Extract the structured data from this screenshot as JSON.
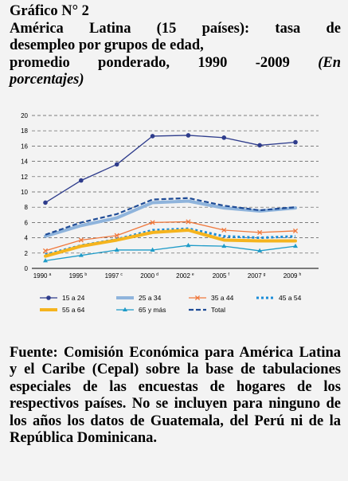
{
  "header": {
    "figure_label": "Gráfico N° 2",
    "title_line1": "América Latina (15 países): tasa de",
    "title_line2": "desempleo por grupos de edad,",
    "title_line3a": "promedio ponderado, 1990 -2009",
    "title_note_a": "(En",
    "title_note_b": "porcentajes)"
  },
  "chart_data": {
    "type": "line",
    "title": "",
    "xlabel": "",
    "ylabel": "",
    "categories": [
      "1990",
      "1995",
      "1997",
      "2000",
      "2002",
      "2005",
      "2007",
      "2009"
    ],
    "category_notes": [
      "a",
      "b",
      "c",
      "d",
      "e",
      "f",
      "g",
      "h"
    ],
    "ylim": [
      0,
      20
    ],
    "yticks": [
      "0",
      "2",
      "4",
      "6",
      "8",
      "10",
      "12",
      "14",
      "16",
      "18",
      "20"
    ],
    "grid": "horizontal dashed",
    "legend": "bottom",
    "series": [
      {
        "name": "15 a 24",
        "color": "#2e3c8c",
        "style": "line-circle",
        "values": [
          8.6,
          11.5,
          13.6,
          17.3,
          17.4,
          17.1,
          16.1,
          16.5
        ]
      },
      {
        "name": "25 a 34",
        "color": "#8fb4dc",
        "style": "thick",
        "values": [
          4.2,
          5.6,
          6.6,
          8.6,
          8.8,
          7.9,
          7.5,
          7.9
        ]
      },
      {
        "name": "35 a 44",
        "color": "#f0783c",
        "style": "line-x",
        "values": [
          2.3,
          3.7,
          4.3,
          6.0,
          6.1,
          5.0,
          4.7,
          4.9
        ]
      },
      {
        "name": "45 a 54",
        "color": "#1a8cd8",
        "style": "dotted",
        "values": [
          1.8,
          3.0,
          3.8,
          5.0,
          5.2,
          4.2,
          4.0,
          4.2
        ]
      },
      {
        "name": "55 a 64",
        "color": "#f5b41e",
        "style": "thick",
        "values": [
          1.6,
          2.9,
          3.7,
          4.7,
          5.0,
          3.7,
          3.6,
          3.6
        ]
      },
      {
        "name": "65 y más",
        "color": "#1e9bc8",
        "style": "line-triangle",
        "values": [
          1.0,
          1.7,
          2.4,
          2.4,
          3.0,
          2.9,
          2.3,
          2.9
        ]
      },
      {
        "name": "Total",
        "color": "#1e4b96",
        "style": "dashed",
        "values": [
          4.4,
          6.0,
          7.1,
          9.0,
          9.2,
          8.2,
          7.6,
          8.0
        ]
      }
    ]
  },
  "source": {
    "text": "Fuente: Comisión Económica para América Latina y el Caribe (Cepal) sobre la base de tabulaciones especiales de las encuestas de hogares de los respectivos países. No se incluyen para ninguno de los años los datos de Guatemala, del Perú ni de la República Dominicana."
  }
}
